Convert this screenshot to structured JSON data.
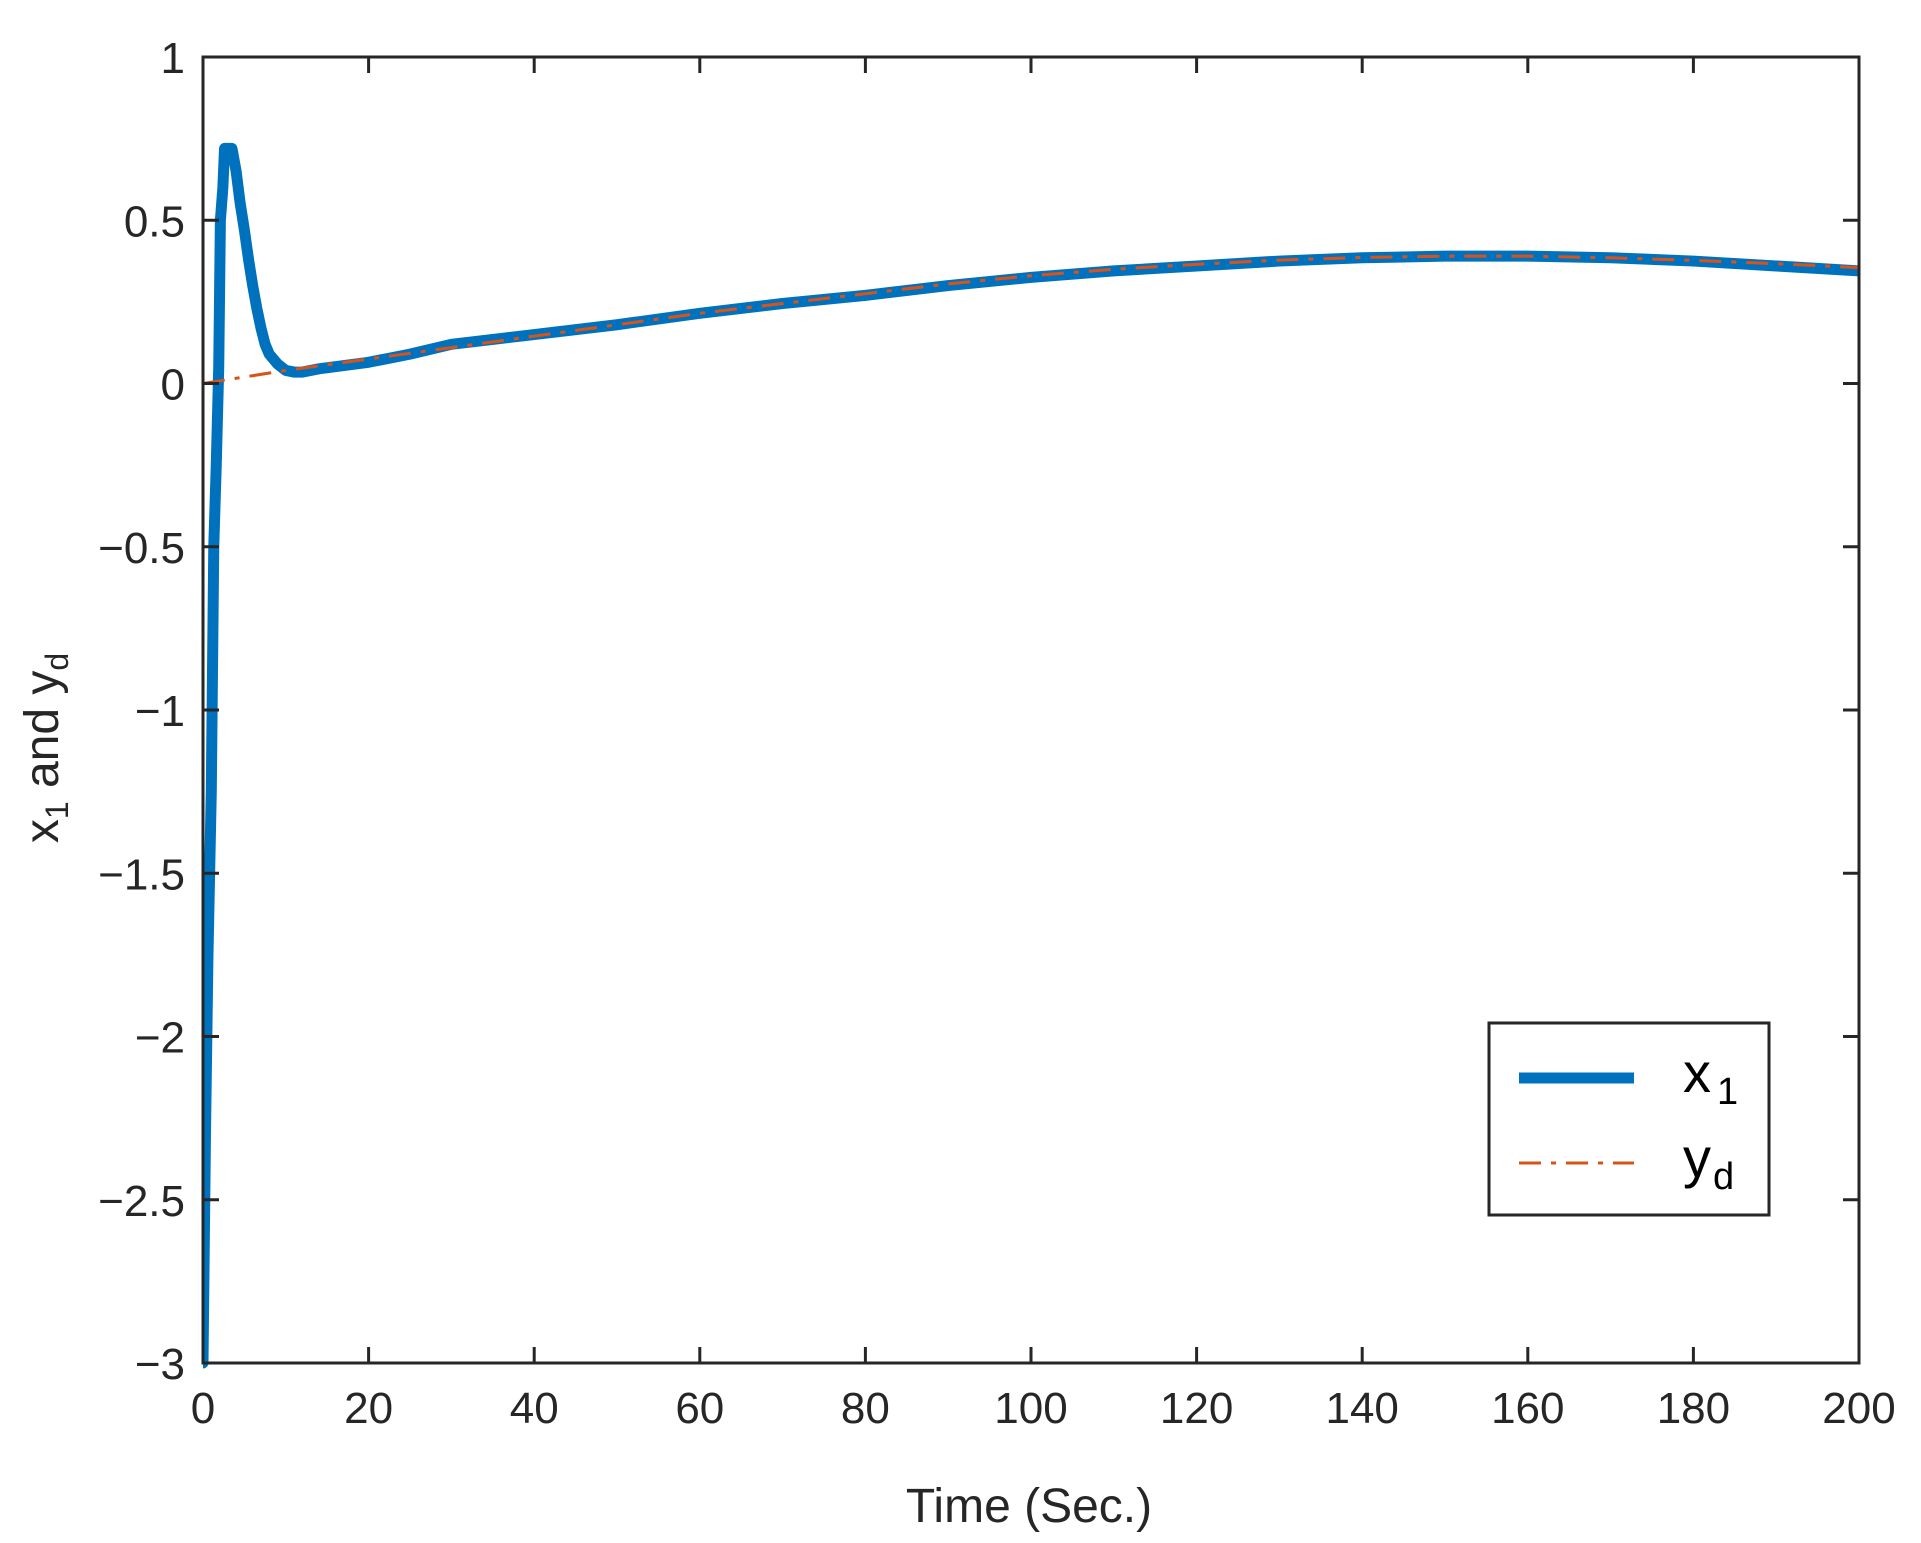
{
  "chart_data": {
    "type": "line",
    "title": "",
    "xlabel": "Time (Sec.)",
    "ylabel": {
      "main": "x",
      "sub1": "1",
      "mid": " and y",
      "sub2": "d"
    },
    "xlim": [
      0,
      200
    ],
    "ylim": [
      -3,
      1
    ],
    "xticks": [
      0,
      20,
      40,
      60,
      80,
      100,
      120,
      140,
      160,
      180,
      200
    ],
    "yticks": [
      -3,
      -2.5,
      -2,
      -1.5,
      -1,
      -0.5,
      0,
      0.5,
      1
    ],
    "xtick_labels": [
      "0",
      "20",
      "40",
      "60",
      "80",
      "100",
      "120",
      "140",
      "160",
      "180",
      "200"
    ],
    "ytick_labels": [
      "−3",
      "−2.5",
      "−2",
      "−1.5",
      "−1",
      "−0.5",
      "0",
      "0.5",
      "1"
    ],
    "grid": false,
    "legend_position": "bottom-right",
    "series": [
      {
        "name": "x",
        "name_sub": "1",
        "color": "#0072BD",
        "style": "solid",
        "x": [
          0,
          0.3,
          0.6,
          1.0,
          1.3,
          1.6,
          1.9,
          2.1,
          2.4,
          2.6,
          3.0,
          3.5,
          4.0,
          4.5,
          5.0,
          5.5,
          6.0,
          6.5,
          7.0,
          7.5,
          8.0,
          9.0,
          10.0,
          11.0,
          12.0,
          14.0,
          17.0,
          20.0,
          25.0,
          30.0,
          35.0,
          40.0,
          50.0,
          60.0,
          70.0,
          80.0,
          90.0,
          100.0,
          110.0,
          120.0,
          130.0,
          140.0,
          150.0,
          160.0,
          170.0,
          180.0,
          190.0,
          200.0
        ],
        "y": [
          -3.0,
          -2.3,
          -1.75,
          -1.25,
          -0.5,
          -0.25,
          0.05,
          0.5,
          0.6,
          0.72,
          0.72,
          0.72,
          0.65,
          0.55,
          0.47,
          0.38,
          0.3,
          0.23,
          0.17,
          0.12,
          0.09,
          0.06,
          0.04,
          0.035,
          0.035,
          0.045,
          0.055,
          0.065,
          0.09,
          0.12,
          0.135,
          0.15,
          0.18,
          0.215,
          0.245,
          0.27,
          0.3,
          0.325,
          0.345,
          0.36,
          0.375,
          0.385,
          0.39,
          0.39,
          0.385,
          0.375,
          0.36,
          0.345
        ]
      },
      {
        "name": "y",
        "name_sub": "d",
        "color": "#D95319",
        "style": "dashed",
        "x": [
          0,
          10,
          20,
          30,
          40,
          50,
          60,
          70,
          80,
          90,
          100,
          110,
          120,
          130,
          140,
          150,
          160,
          170,
          180,
          190,
          200
        ],
        "y": [
          0.0,
          0.04,
          0.075,
          0.11,
          0.145,
          0.18,
          0.215,
          0.245,
          0.275,
          0.305,
          0.33,
          0.35,
          0.365,
          0.378,
          0.386,
          0.39,
          0.39,
          0.385,
          0.377,
          0.367,
          0.355
        ]
      }
    ]
  }
}
